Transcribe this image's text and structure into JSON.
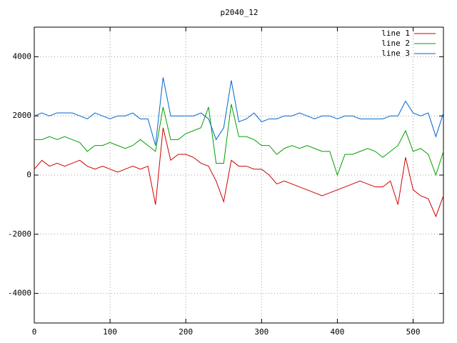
{
  "chart_data": {
    "type": "line",
    "title": "p2040_12",
    "x": [
      0,
      10,
      20,
      30,
      40,
      50,
      60,
      70,
      80,
      90,
      100,
      110,
      120,
      130,
      140,
      150,
      160,
      170,
      180,
      190,
      200,
      210,
      220,
      230,
      240,
      250,
      260,
      270,
      280,
      290,
      300,
      310,
      320,
      330,
      340,
      350,
      360,
      370,
      380,
      390,
      400,
      410,
      420,
      430,
      440,
      450,
      460,
      470,
      480,
      490,
      500,
      510,
      520,
      530,
      540
    ],
    "series": [
      {
        "name": "line 1",
        "color": "#d00000",
        "values": [
          200,
          500,
          300,
          400,
          300,
          400,
          500,
          300,
          200,
          300,
          200,
          100,
          200,
          300,
          200,
          300,
          -1000,
          1600,
          500,
          700,
          700,
          600,
          400,
          300,
          -200,
          -900,
          500,
          300,
          300,
          200,
          200,
          0,
          -300,
          -200,
          -300,
          -400,
          -500,
          -600,
          -700,
          -600,
          -500,
          -400,
          -300,
          -200,
          -300,
          -400,
          -400,
          -200,
          -1000,
          600,
          -500,
          -700,
          -800,
          -1400,
          -700
        ]
      },
      {
        "name": "line 2",
        "color": "#00a000",
        "values": [
          1200,
          1200,
          1300,
          1200,
          1300,
          1200,
          1100,
          800,
          1000,
          1000,
          1100,
          1000,
          900,
          1000,
          1200,
          1000,
          800,
          2300,
          1200,
          1200,
          1400,
          1500,
          1600,
          2300,
          400,
          400,
          2400,
          1300,
          1300,
          1200,
          1000,
          1000,
          700,
          900,
          1000,
          900,
          1000,
          900,
          800,
          800,
          0,
          700,
          700,
          800,
          900,
          800,
          600,
          800,
          1000,
          1500,
          800,
          900,
          700,
          0,
          800
        ]
      },
      {
        "name": "line 3",
        "color": "#0066cc",
        "values": [
          2000,
          2100,
          2000,
          2100,
          2100,
          2100,
          2000,
          1900,
          2100,
          2000,
          1900,
          2000,
          2000,
          2100,
          1900,
          1900,
          1000,
          3300,
          2000,
          2000,
          2000,
          2000,
          2100,
          1900,
          1200,
          1600,
          3200,
          1800,
          1900,
          2100,
          1800,
          1900,
          1900,
          2000,
          2000,
          2100,
          2000,
          1900,
          2000,
          2000,
          1900,
          2000,
          2000,
          1900,
          1900,
          1900,
          1900,
          2000,
          2000,
          2500,
          2100,
          2000,
          2100,
          1300,
          2100
        ]
      }
    ],
    "xlim": [
      0,
      540
    ],
    "xticks": [
      0,
      100,
      200,
      300,
      400,
      500
    ],
    "ylim": [
      -5000,
      5000
    ],
    "yticks": [
      -4000,
      -2000,
      0,
      2000,
      4000
    ],
    "grid": true,
    "legend": "top-right"
  }
}
